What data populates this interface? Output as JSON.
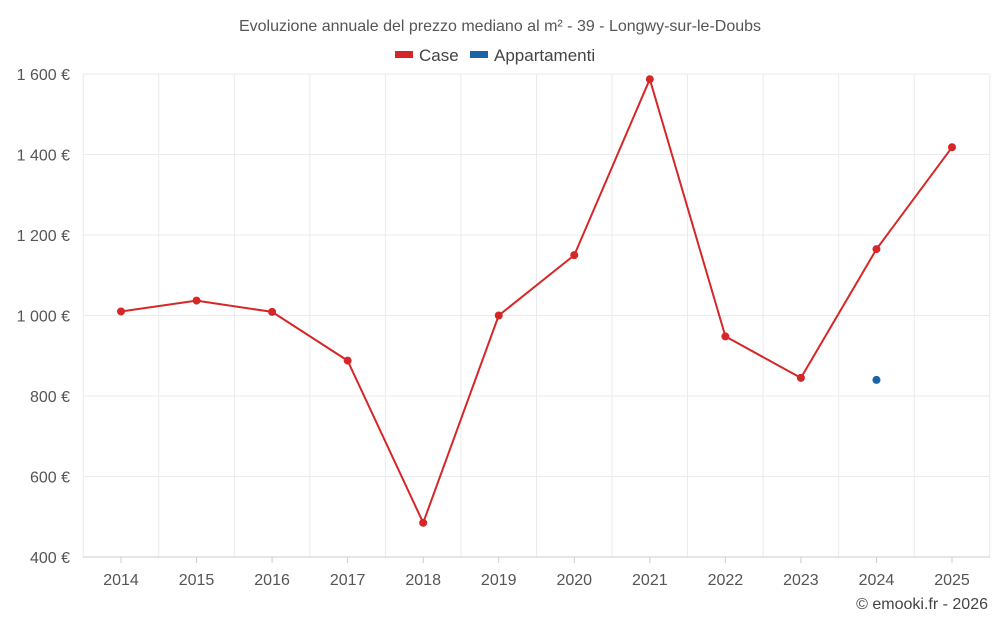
{
  "chart_data": {
    "type": "line",
    "title": "Evoluzione annuale del prezzo mediano al m² - 39 - Longwy-sur-le-Doubs",
    "xlabel": "",
    "ylabel": "",
    "categories": [
      "2014",
      "2015",
      "2016",
      "2017",
      "2018",
      "2019",
      "2020",
      "2021",
      "2022",
      "2023",
      "2024",
      "2025"
    ],
    "ylim": [
      400,
      1600
    ],
    "yticks": [
      400,
      600,
      800,
      1000,
      1200,
      1400,
      1600
    ],
    "ytick_labels": [
      "400 €",
      "600 €",
      "800 €",
      "1 000 €",
      "1 200 €",
      "1 400 €",
      "1 600 €"
    ],
    "grid": true,
    "legend_position": "top-center",
    "series": [
      {
        "name": "Case",
        "color": "#d62728",
        "values": [
          1010,
          1037,
          1009,
          888,
          485,
          1000,
          1150,
          1587,
          948,
          845,
          1165,
          1418
        ]
      },
      {
        "name": "Appartamenti",
        "color": "#1764a6",
        "values": [
          null,
          null,
          null,
          null,
          null,
          null,
          null,
          null,
          null,
          null,
          840,
          null
        ]
      }
    ]
  },
  "credit": "© emooki.fr - 2026"
}
